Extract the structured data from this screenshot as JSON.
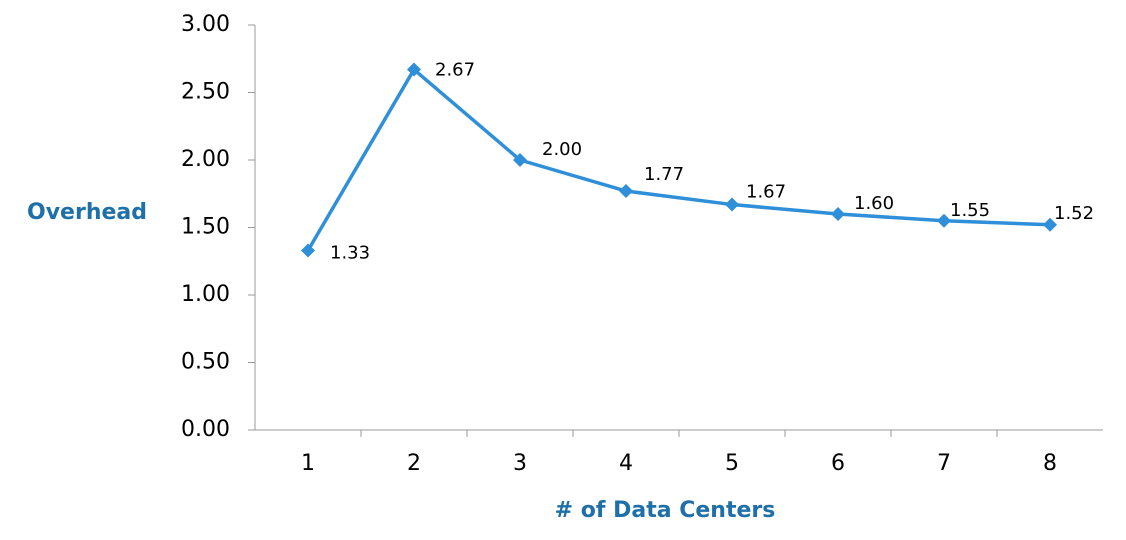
{
  "chart_data": {
    "type": "line",
    "x_label": "# of Data Centers",
    "y_label": "Overhead",
    "categories": [
      "1",
      "2",
      "3",
      "4",
      "5",
      "6",
      "7",
      "8"
    ],
    "series": [
      {
        "name": "Overhead",
        "color": "#2f8fd8",
        "values": [
          1.33,
          2.67,
          2.0,
          1.77,
          1.67,
          1.6,
          1.55,
          1.52
        ],
        "value_labels": [
          "1.33",
          "2.67",
          "2.00",
          "1.77",
          "1.67",
          "1.60",
          "1.55",
          "1.52"
        ]
      }
    ],
    "ylim": [
      0,
      3
    ],
    "yticks": [
      {
        "value": 0,
        "label": "0.00"
      },
      {
        "value": 0.5,
        "label": "0.50"
      },
      {
        "value": 1,
        "label": "1.00"
      },
      {
        "value": 1.5,
        "label": "1.50"
      },
      {
        "value": 2,
        "label": "2.00"
      },
      {
        "value": 2.5,
        "label": "2.50"
      },
      {
        "value": 3,
        "label": "3.00"
      }
    ],
    "grid": false,
    "legend": false
  }
}
